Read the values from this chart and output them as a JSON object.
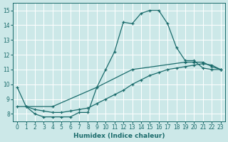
{
  "xlabel": "Humidex (Indice chaleur)",
  "bg_color": "#cce8e8",
  "line_color": "#1a6b6b",
  "grid_color": "#ffffff",
  "xlim": [
    -0.5,
    23.5
  ],
  "ylim": [
    7.5,
    15.5
  ],
  "xticks": [
    0,
    1,
    2,
    3,
    4,
    5,
    6,
    7,
    8,
    9,
    10,
    11,
    12,
    13,
    14,
    15,
    16,
    17,
    18,
    19,
    20,
    21,
    22,
    23
  ],
  "yticks": [
    8,
    9,
    10,
    11,
    12,
    13,
    14,
    15
  ],
  "line1_x": [
    0,
    1,
    2,
    3,
    4,
    5,
    6,
    7,
    8,
    9,
    10,
    11,
    12,
    13,
    14,
    15,
    16,
    17,
    18,
    19,
    20,
    21,
    22,
    23
  ],
  "line1_y": [
    9.8,
    8.5,
    8.0,
    7.8,
    7.8,
    7.8,
    7.8,
    8.1,
    8.1,
    9.8,
    11.0,
    12.2,
    14.2,
    14.1,
    14.8,
    15.0,
    15.0,
    14.1,
    12.5,
    11.6,
    11.6,
    11.1,
    11.0,
    11.0
  ],
  "line2_x": [
    0,
    4,
    9,
    13,
    19,
    20,
    21,
    22,
    23
  ],
  "line2_y": [
    8.5,
    8.5,
    9.8,
    11.0,
    11.5,
    11.5,
    11.5,
    11.2,
    11.0
  ],
  "line3_x": [
    1,
    2,
    3,
    4,
    5,
    6,
    7,
    8,
    9,
    10,
    11,
    12,
    13,
    14,
    15,
    16,
    17,
    18,
    19,
    20,
    21,
    22,
    23
  ],
  "line3_y": [
    8.5,
    8.3,
    8.2,
    8.1,
    8.1,
    8.2,
    8.3,
    8.4,
    8.7,
    9.0,
    9.3,
    9.6,
    10.0,
    10.3,
    10.6,
    10.8,
    11.0,
    11.1,
    11.2,
    11.3,
    11.4,
    11.3,
    11.0
  ]
}
